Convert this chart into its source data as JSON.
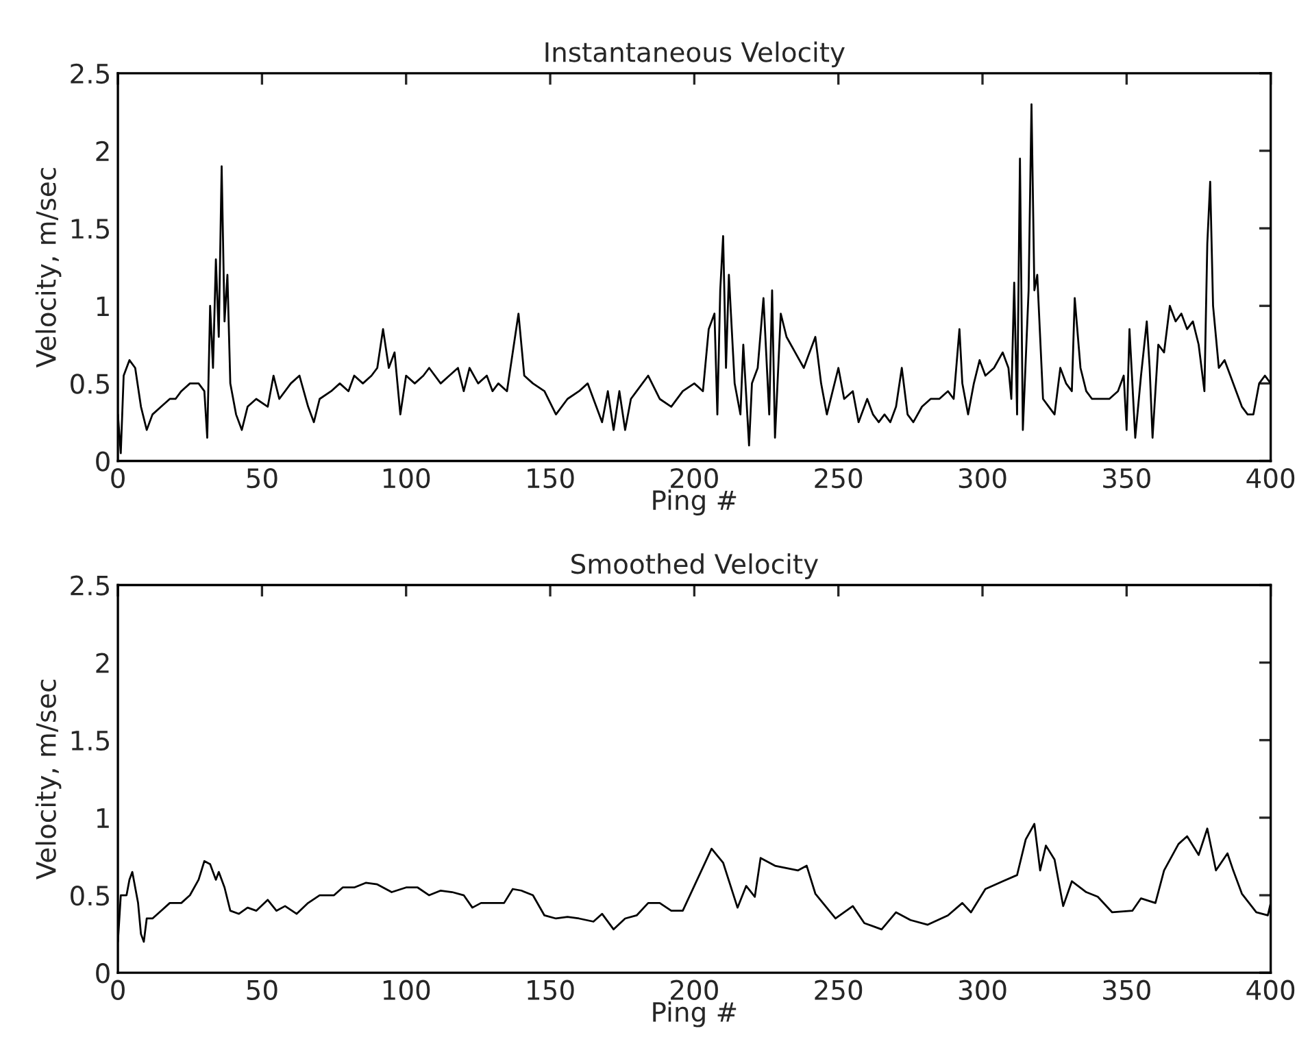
{
  "chart_data": [
    {
      "type": "line",
      "title": "Instantaneous Velocity",
      "xlabel": "Ping #",
      "ylabel": "Velocity, m/sec",
      "xlim": [
        0,
        400
      ],
      "ylim": [
        0,
        2.5
      ],
      "xticks": [
        0,
        50,
        100,
        150,
        200,
        250,
        300,
        350,
        400
      ],
      "yticks": [
        0,
        0.5,
        1,
        1.5,
        2,
        2.5
      ],
      "grid": false,
      "legend": false,
      "series": [
        {
          "color": "#000000",
          "x": [
            0,
            1,
            2,
            4,
            6,
            8,
            10,
            12,
            15,
            18,
            20,
            22,
            25,
            28,
            30,
            31,
            32,
            33,
            34,
            35,
            36,
            37,
            38,
            39,
            41,
            43,
            45,
            48,
            52,
            54,
            56,
            60,
            63,
            66,
            68,
            70,
            74,
            77,
            80,
            82,
            85,
            88,
            90,
            92,
            94,
            96,
            98,
            100,
            103,
            106,
            108,
            112,
            115,
            118,
            120,
            122,
            125,
            128,
            130,
            132,
            135,
            137,
            139,
            141,
            144,
            148,
            152,
            156,
            160,
            163,
            166,
            168,
            170,
            172,
            174,
            176,
            178,
            180,
            184,
            188,
            192,
            196,
            200,
            203,
            205,
            207,
            208,
            209,
            210,
            211,
            212,
            214,
            216,
            217,
            219,
            220,
            222,
            224,
            226,
            227,
            228,
            230,
            232,
            235,
            238,
            240,
            242,
            244,
            246,
            248,
            250,
            252,
            255,
            257,
            260,
            262,
            264,
            266,
            268,
            270,
            272,
            274,
            276,
            279,
            282,
            285,
            288,
            290,
            292,
            293,
            295,
            297,
            299,
            301,
            304,
            307,
            309,
            310,
            311,
            312,
            313,
            314,
            316,
            317,
            318,
            319,
            321,
            323,
            325,
            327,
            329,
            331,
            332,
            334,
            336,
            338,
            341,
            344,
            347,
            349,
            350,
            351,
            353,
            355,
            357,
            358,
            359,
            361,
            363,
            365,
            367,
            369,
            371,
            373,
            375,
            377,
            378,
            379,
            380,
            382,
            384,
            386,
            388,
            390,
            392,
            394,
            396,
            398,
            400
          ],
          "values": [
            0.3,
            0.05,
            0.55,
            0.65,
            0.6,
            0.35,
            0.2,
            0.3,
            0.35,
            0.4,
            0.4,
            0.45,
            0.5,
            0.5,
            0.45,
            0.15,
            1.0,
            0.6,
            1.3,
            0.8,
            1.9,
            0.9,
            1.2,
            0.5,
            0.3,
            0.2,
            0.35,
            0.4,
            0.35,
            0.55,
            0.4,
            0.5,
            0.55,
            0.35,
            0.25,
            0.4,
            0.45,
            0.5,
            0.45,
            0.55,
            0.5,
            0.55,
            0.6,
            0.85,
            0.6,
            0.7,
            0.3,
            0.55,
            0.5,
            0.55,
            0.6,
            0.5,
            0.55,
            0.6,
            0.45,
            0.6,
            0.5,
            0.55,
            0.45,
            0.5,
            0.45,
            0.7,
            0.95,
            0.55,
            0.5,
            0.45,
            0.3,
            0.4,
            0.45,
            0.5,
            0.35,
            0.25,
            0.45,
            0.2,
            0.45,
            0.2,
            0.4,
            0.45,
            0.55,
            0.4,
            0.35,
            0.45,
            0.5,
            0.45,
            0.85,
            0.95,
            0.3,
            1.1,
            1.45,
            0.6,
            1.2,
            0.5,
            0.3,
            0.75,
            0.1,
            0.5,
            0.6,
            1.05,
            0.3,
            1.1,
            0.15,
            0.95,
            0.8,
            0.7,
            0.6,
            0.7,
            0.8,
            0.5,
            0.3,
            0.45,
            0.6,
            0.4,
            0.45,
            0.25,
            0.4,
            0.3,
            0.25,
            0.3,
            0.25,
            0.35,
            0.6,
            0.3,
            0.25,
            0.35,
            0.4,
            0.4,
            0.45,
            0.4,
            0.85,
            0.5,
            0.3,
            0.5,
            0.65,
            0.55,
            0.6,
            0.7,
            0.6,
            0.4,
            1.15,
            0.3,
            1.95,
            0.2,
            1.1,
            2.3,
            1.1,
            1.2,
            0.4,
            0.35,
            0.3,
            0.6,
            0.5,
            0.45,
            1.05,
            0.6,
            0.45,
            0.4,
            0.4,
            0.4,
            0.45,
            0.55,
            0.2,
            0.85,
            0.15,
            0.55,
            0.9,
            0.6,
            0.15,
            0.75,
            0.7,
            1.0,
            0.9,
            0.95,
            0.85,
            0.9,
            0.75,
            0.45,
            1.4,
            1.8,
            1.0,
            0.6,
            0.65,
            0.55,
            0.45,
            0.35,
            0.3,
            0.3,
            0.5,
            0.55,
            0.5
          ]
        }
      ]
    },
    {
      "type": "line",
      "title": "Smoothed Velocity",
      "xlabel": "Ping #",
      "ylabel": "Velocity, m/sec",
      "xlim": [
        0,
        400
      ],
      "ylim": [
        0,
        2.5
      ],
      "xticks": [
        0,
        50,
        100,
        150,
        200,
        250,
        300,
        350,
        400
      ],
      "yticks": [
        0,
        0.5,
        1,
        1.5,
        2,
        2.5
      ],
      "grid": false,
      "legend": false,
      "series": [
        {
          "color": "#000000",
          "x": [
            0,
            1,
            3,
            4,
            5,
            6,
            7,
            8,
            9,
            10,
            12,
            15,
            18,
            22,
            25,
            28,
            30,
            32,
            34,
            35,
            37,
            39,
            42,
            45,
            48,
            52,
            55,
            58,
            62,
            66,
            70,
            75,
            78,
            82,
            86,
            90,
            95,
            100,
            104,
            108,
            112,
            116,
            120,
            123,
            126,
            130,
            134,
            137,
            140,
            144,
            148,
            152,
            156,
            160,
            165,
            168,
            172,
            176,
            180,
            184,
            188,
            192,
            196,
            201,
            206,
            210,
            215,
            218,
            221,
            223,
            228,
            236,
            239,
            242,
            249,
            255,
            259,
            265,
            270,
            275,
            281,
            288,
            293,
            296,
            301,
            307,
            312,
            315,
            318,
            320,
            322,
            325,
            328,
            331,
            336,
            340,
            345,
            352,
            355,
            360,
            363,
            368,
            371,
            375,
            378,
            381,
            385,
            387,
            390,
            395,
            399,
            400
          ],
          "values": [
            0.2,
            0.5,
            0.5,
            0.6,
            0.65,
            0.55,
            0.45,
            0.25,
            0.2,
            0.35,
            0.35,
            0.4,
            0.45,
            0.45,
            0.5,
            0.6,
            0.72,
            0.7,
            0.6,
            0.65,
            0.55,
            0.4,
            0.38,
            0.42,
            0.4,
            0.47,
            0.4,
            0.43,
            0.38,
            0.45,
            0.5,
            0.5,
            0.55,
            0.55,
            0.58,
            0.57,
            0.52,
            0.55,
            0.55,
            0.5,
            0.53,
            0.52,
            0.5,
            0.42,
            0.45,
            0.45,
            0.45,
            0.54,
            0.53,
            0.5,
            0.37,
            0.35,
            0.36,
            0.35,
            0.33,
            0.38,
            0.28,
            0.35,
            0.37,
            0.45,
            0.45,
            0.4,
            0.4,
            0.6,
            0.8,
            0.71,
            0.42,
            0.56,
            0.49,
            0.74,
            0.69,
            0.66,
            0.69,
            0.51,
            0.35,
            0.43,
            0.32,
            0.28,
            0.39,
            0.34,
            0.31,
            0.37,
            0.45,
            0.39,
            0.54,
            0.59,
            0.63,
            0.86,
            0.96,
            0.66,
            0.82,
            0.73,
            0.43,
            0.59,
            0.52,
            0.49,
            0.39,
            0.4,
            0.48,
            0.45,
            0.66,
            0.83,
            0.88,
            0.76,
            0.93,
            0.66,
            0.77,
            0.66,
            0.51,
            0.39,
            0.37,
            0.45
          ]
        }
      ]
    }
  ]
}
